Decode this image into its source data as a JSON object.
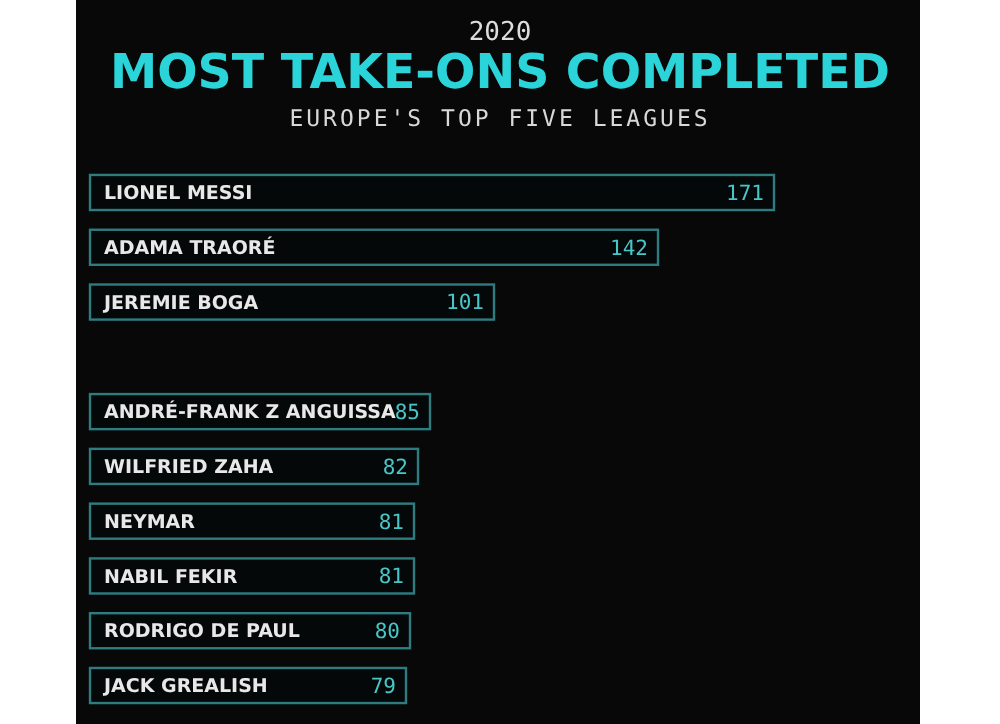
{
  "chart_data": {
    "type": "bar",
    "orientation": "horizontal",
    "title": "MOST TAKE-ONS COMPLETED",
    "subtitle": "EUROPE'S TOP FIVE LEAGUES",
    "annotations": [
      "2020"
    ],
    "categories": [
      "LIONEL MESSI",
      "ADAMA TRAORÉ",
      "JEREMIE BOGA",
      null,
      "ANDRÉ-FRANK Z ANGUISSA",
      "WILFRIED ZAHA",
      "NEYMAR",
      "NABIL FEKIR",
      "RODRIGO DE PAUL",
      "JACK GREALISH"
    ],
    "values": [
      171,
      142,
      101,
      null,
      85,
      82,
      81,
      81,
      80,
      79
    ],
    "color": "#2f7c80",
    "data_labels": true
  }
}
